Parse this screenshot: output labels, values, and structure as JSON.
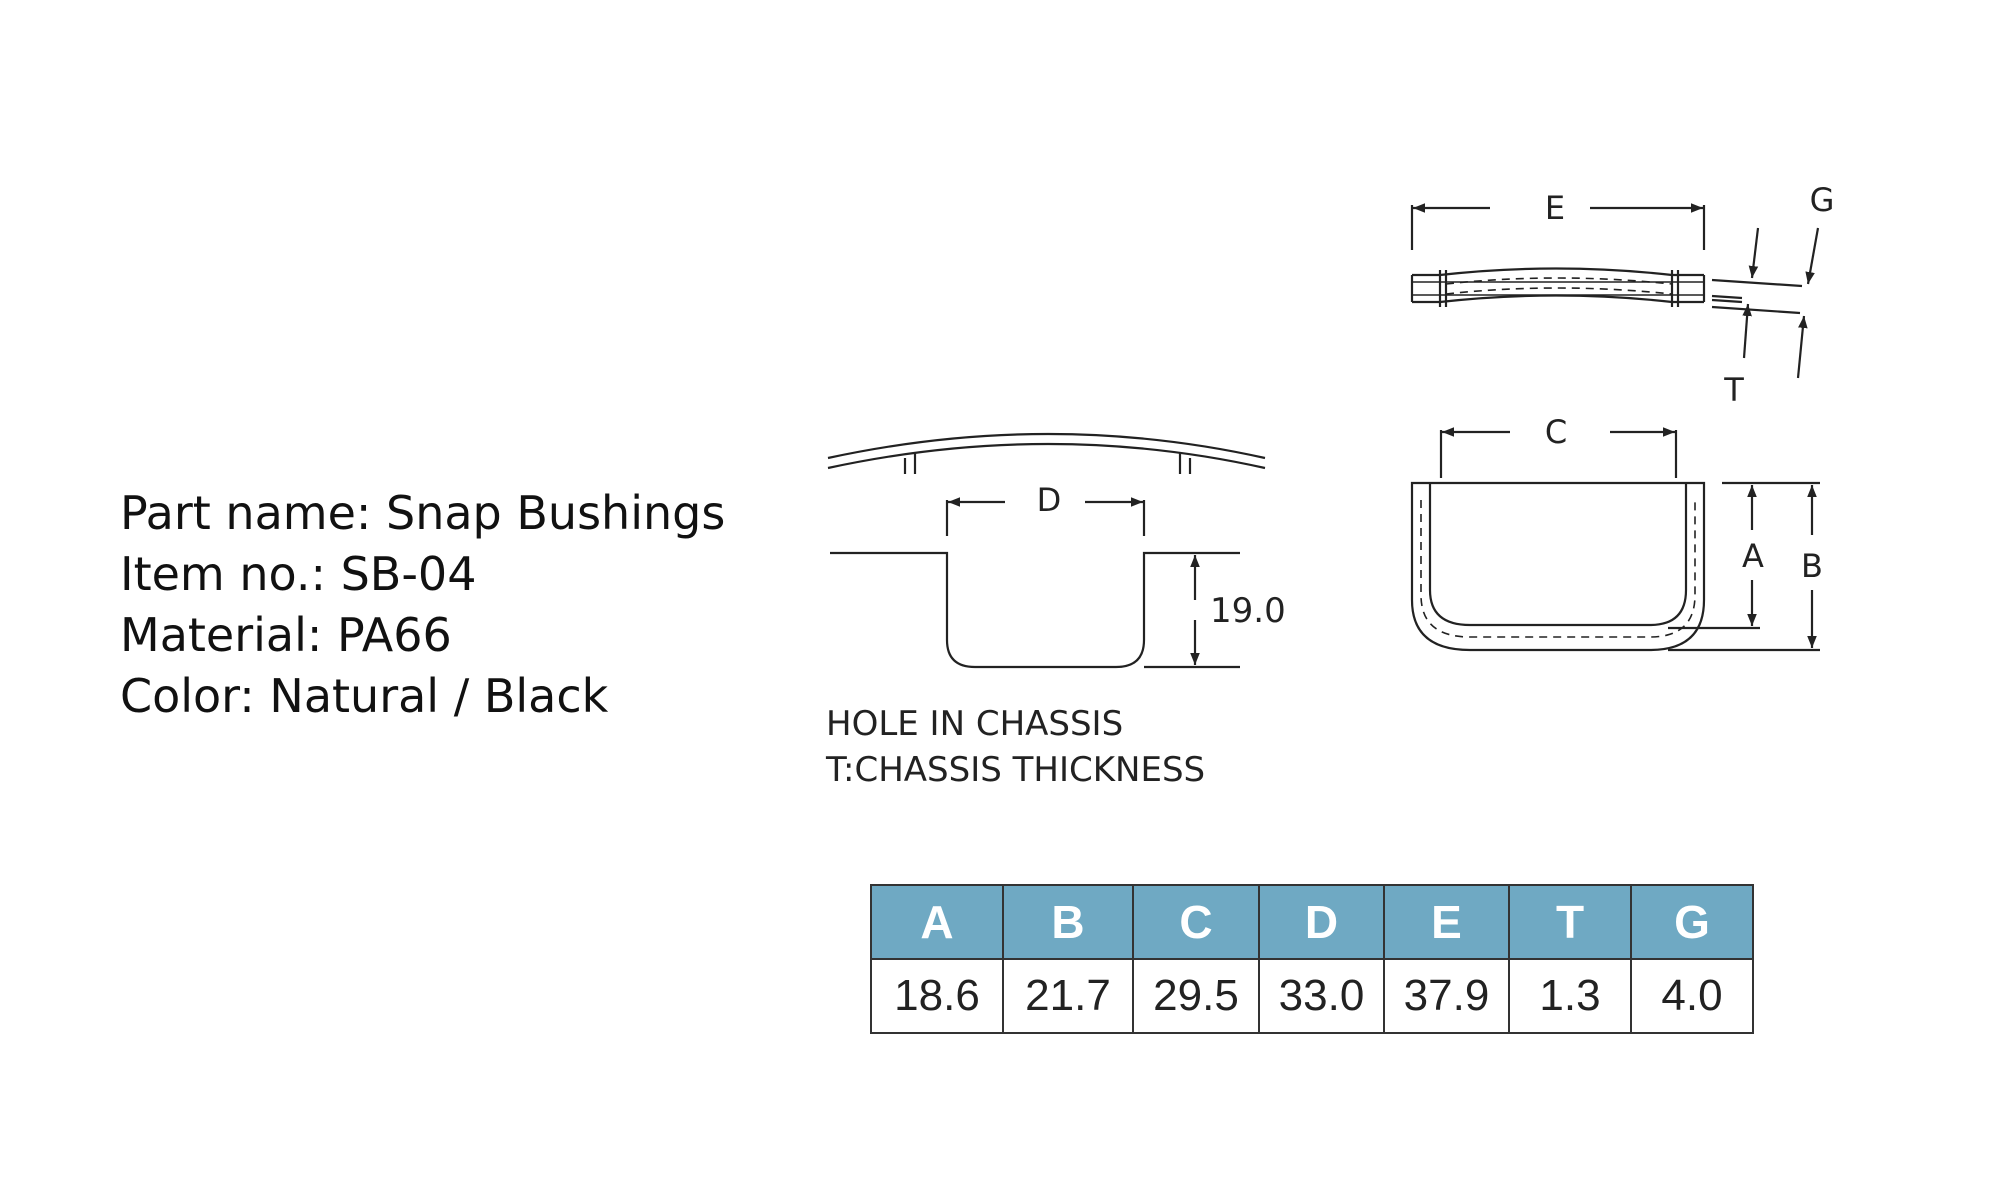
{
  "info": {
    "part_name": "Part name: Snap Bushings",
    "item_no": "Item no.: SB-04",
    "material": "Material: PA66",
    "color": "Color: Natural / Black"
  },
  "drawing": {
    "label_d": "D",
    "dim_depth": "19.0",
    "note_line1": "HOLE  IN  CHASSIS",
    "note_line2": "T:CHASSIS  THICKNESS",
    "label_e": "E",
    "label_g": "G",
    "label_t": "T",
    "label_c": "C",
    "label_a": "A",
    "label_b": "B"
  },
  "table": {
    "headers": [
      "A",
      "B",
      "C",
      "D",
      "E",
      "T",
      "G"
    ],
    "values": [
      "18.6",
      "21.7",
      "29.5",
      "33.0",
      "37.9",
      "1.3",
      "4.0"
    ]
  }
}
